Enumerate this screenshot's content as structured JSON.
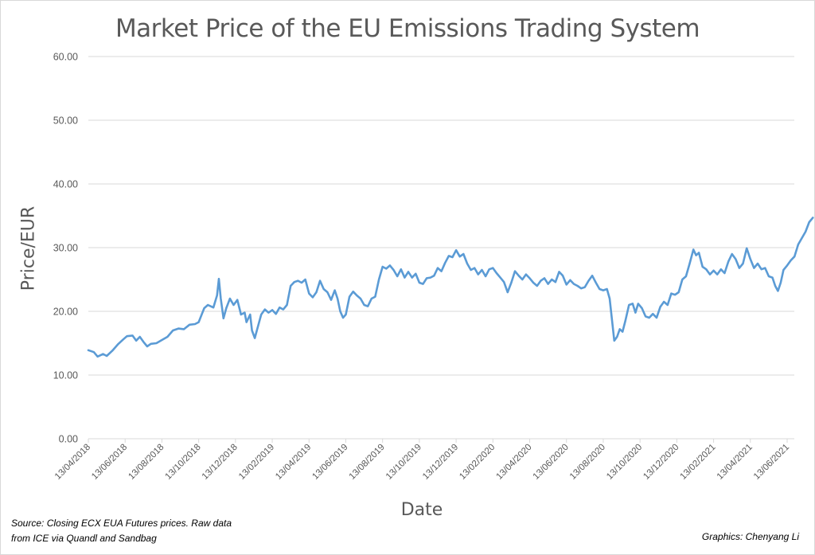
{
  "chart_data": {
    "type": "line",
    "title": "Market Price of the EU Emissions Trading System",
    "xlabel": "Date",
    "ylabel": "Price/EUR",
    "ylim": [
      0,
      60
    ],
    "y_ticks": [
      "0.00",
      "10.00",
      "20.00",
      "30.00",
      "40.00",
      "50.00",
      "60.00"
    ],
    "x_ticks": [
      "13/04/2018",
      "13/06/2018",
      "13/08/2018",
      "13/10/2018",
      "13/12/2018",
      "13/02/2019",
      "13/04/2019",
      "13/06/2019",
      "13/08/2019",
      "13/10/2019",
      "13/12/2019",
      "13/02/2020",
      "13/04/2020",
      "13/06/2020",
      "13/08/2020",
      "13/10/2020",
      "13/12/2020",
      "13/02/2021",
      "13/04/2021",
      "13/06/2021"
    ],
    "x_unit": "months since 13/04/2018",
    "x_range_months": [
      0,
      39.4
    ],
    "grid": true,
    "legend": "none",
    "series": [
      {
        "name": "ECX EUA Futures closing price",
        "color": "#5B9BD5",
        "points": [
          [
            0.0,
            13.9
          ],
          [
            0.3,
            13.6
          ],
          [
            0.5,
            12.9
          ],
          [
            0.8,
            13.3
          ],
          [
            1.0,
            13.0
          ],
          [
            1.3,
            13.8
          ],
          [
            1.6,
            14.8
          ],
          [
            1.9,
            15.6
          ],
          [
            2.1,
            16.1
          ],
          [
            2.4,
            16.2
          ],
          [
            2.6,
            15.4
          ],
          [
            2.8,
            16.0
          ],
          [
            3.0,
            15.2
          ],
          [
            3.2,
            14.5
          ],
          [
            3.4,
            14.9
          ],
          [
            3.7,
            15.0
          ],
          [
            4.0,
            15.5
          ],
          [
            4.3,
            16.0
          ],
          [
            4.6,
            17.0
          ],
          [
            4.9,
            17.3
          ],
          [
            5.2,
            17.2
          ],
          [
            5.5,
            17.9
          ],
          [
            5.8,
            18.0
          ],
          [
            6.0,
            18.3
          ],
          [
            6.3,
            20.5
          ],
          [
            6.5,
            21.0
          ],
          [
            6.8,
            20.6
          ],
          [
            7.0,
            22.5
          ],
          [
            7.1,
            25.1
          ],
          [
            7.2,
            22.0
          ],
          [
            7.35,
            18.9
          ],
          [
            7.5,
            20.5
          ],
          [
            7.7,
            22.0
          ],
          [
            7.9,
            21.0
          ],
          [
            8.1,
            21.8
          ],
          [
            8.3,
            19.5
          ],
          [
            8.5,
            19.8
          ],
          [
            8.6,
            18.3
          ],
          [
            8.8,
            19.5
          ],
          [
            8.9,
            17.0
          ],
          [
            9.05,
            15.8
          ],
          [
            9.2,
            17.4
          ],
          [
            9.4,
            19.5
          ],
          [
            9.6,
            20.3
          ],
          [
            9.8,
            19.8
          ],
          [
            10.0,
            20.2
          ],
          [
            10.2,
            19.6
          ],
          [
            10.4,
            20.6
          ],
          [
            10.6,
            20.3
          ],
          [
            10.8,
            21.0
          ],
          [
            11.0,
            24.0
          ],
          [
            11.2,
            24.6
          ],
          [
            11.4,
            24.8
          ],
          [
            11.6,
            24.5
          ],
          [
            11.8,
            25.0
          ],
          [
            12.0,
            22.8
          ],
          [
            12.2,
            22.2
          ],
          [
            12.4,
            23.0
          ],
          [
            12.6,
            24.8
          ],
          [
            12.8,
            23.5
          ],
          [
            13.0,
            23.0
          ],
          [
            13.2,
            21.8
          ],
          [
            13.4,
            23.3
          ],
          [
            13.55,
            22.0
          ],
          [
            13.7,
            20.0
          ],
          [
            13.85,
            19.0
          ],
          [
            14.0,
            19.5
          ],
          [
            14.2,
            22.3
          ],
          [
            14.4,
            23.1
          ],
          [
            14.6,
            22.5
          ],
          [
            14.8,
            22.0
          ],
          [
            15.0,
            21.0
          ],
          [
            15.2,
            20.8
          ],
          [
            15.4,
            22.0
          ],
          [
            15.6,
            22.3
          ],
          [
            15.8,
            25.0
          ],
          [
            16.0,
            27.0
          ],
          [
            16.2,
            26.7
          ],
          [
            16.4,
            27.2
          ],
          [
            16.6,
            26.5
          ],
          [
            16.8,
            25.5
          ],
          [
            17.0,
            26.6
          ],
          [
            17.2,
            25.3
          ],
          [
            17.4,
            26.2
          ],
          [
            17.6,
            25.3
          ],
          [
            17.8,
            25.9
          ],
          [
            18.0,
            24.5
          ],
          [
            18.2,
            24.3
          ],
          [
            18.4,
            25.2
          ],
          [
            18.6,
            25.3
          ],
          [
            18.8,
            25.6
          ],
          [
            19.0,
            26.8
          ],
          [
            19.2,
            26.3
          ],
          [
            19.4,
            27.6
          ],
          [
            19.6,
            28.7
          ],
          [
            19.8,
            28.5
          ],
          [
            20.0,
            29.6
          ],
          [
            20.2,
            28.6
          ],
          [
            20.4,
            29.0
          ],
          [
            20.6,
            27.5
          ],
          [
            20.8,
            26.5
          ],
          [
            21.0,
            26.8
          ],
          [
            21.2,
            25.8
          ],
          [
            21.4,
            26.5
          ],
          [
            21.6,
            25.5
          ],
          [
            21.8,
            26.6
          ],
          [
            22.0,
            26.8
          ],
          [
            22.2,
            26.0
          ],
          [
            22.4,
            25.3
          ],
          [
            22.6,
            24.6
          ],
          [
            22.8,
            23.0
          ],
          [
            23.0,
            24.5
          ],
          [
            23.2,
            26.3
          ],
          [
            23.4,
            25.6
          ],
          [
            23.6,
            25.0
          ],
          [
            23.8,
            25.8
          ],
          [
            24.0,
            25.2
          ],
          [
            24.2,
            24.5
          ],
          [
            24.4,
            24.0
          ],
          [
            24.6,
            24.8
          ],
          [
            24.8,
            25.2
          ],
          [
            25.0,
            24.3
          ],
          [
            25.2,
            25.0
          ],
          [
            25.4,
            24.6
          ],
          [
            25.6,
            26.2
          ],
          [
            25.8,
            25.6
          ],
          [
            26.0,
            24.2
          ],
          [
            26.2,
            24.9
          ],
          [
            26.4,
            24.3
          ],
          [
            26.6,
            24.0
          ],
          [
            26.8,
            23.6
          ],
          [
            27.0,
            23.8
          ],
          [
            27.2,
            24.8
          ],
          [
            27.4,
            25.6
          ],
          [
            27.6,
            24.5
          ],
          [
            27.8,
            23.5
          ],
          [
            28.0,
            23.3
          ],
          [
            28.2,
            23.5
          ],
          [
            28.35,
            22.0
          ],
          [
            28.5,
            18.0
          ],
          [
            28.6,
            15.4
          ],
          [
            28.75,
            16.0
          ],
          [
            28.9,
            17.2
          ],
          [
            29.05,
            16.8
          ],
          [
            29.2,
            18.5
          ],
          [
            29.4,
            21.0
          ],
          [
            29.6,
            21.2
          ],
          [
            29.75,
            19.8
          ],
          [
            29.9,
            21.2
          ],
          [
            30.1,
            20.5
          ],
          [
            30.3,
            19.2
          ],
          [
            30.5,
            19.0
          ],
          [
            30.7,
            19.6
          ],
          [
            30.9,
            19.0
          ],
          [
            31.1,
            20.7
          ],
          [
            31.3,
            21.5
          ],
          [
            31.5,
            21.0
          ],
          [
            31.7,
            22.8
          ],
          [
            31.9,
            22.6
          ],
          [
            32.1,
            23.0
          ],
          [
            32.3,
            25.0
          ],
          [
            32.5,
            25.5
          ],
          [
            32.7,
            27.5
          ],
          [
            32.9,
            29.7
          ],
          [
            33.05,
            28.8
          ],
          [
            33.2,
            29.2
          ],
          [
            33.4,
            27.0
          ],
          [
            33.6,
            26.6
          ],
          [
            33.8,
            25.8
          ],
          [
            34.0,
            26.4
          ],
          [
            34.2,
            25.8
          ],
          [
            34.4,
            26.6
          ],
          [
            34.6,
            26.0
          ],
          [
            34.8,
            27.8
          ],
          [
            35.0,
            29.0
          ],
          [
            35.2,
            28.2
          ],
          [
            35.4,
            26.8
          ],
          [
            35.6,
            27.5
          ],
          [
            35.8,
            29.9
          ],
          [
            36.0,
            28.2
          ],
          [
            36.2,
            26.8
          ],
          [
            36.4,
            27.5
          ],
          [
            36.6,
            26.6
          ],
          [
            36.8,
            26.8
          ],
          [
            37.0,
            25.5
          ],
          [
            37.2,
            25.3
          ],
          [
            37.35,
            24.0
          ],
          [
            37.5,
            23.2
          ],
          [
            37.65,
            24.5
          ],
          [
            37.8,
            26.5
          ],
          [
            38.0,
            27.2
          ],
          [
            38.2,
            28.0
          ],
          [
            38.4,
            28.6
          ],
          [
            38.6,
            30.5
          ],
          [
            38.8,
            31.5
          ],
          [
            39.0,
            32.5
          ],
          [
            39.2,
            34.0
          ],
          [
            39.4,
            34.7
          ]
        ]
      }
    ]
  },
  "footer": {
    "source_line1": "Source: Closing ECX EUA Futures prices. Raw data",
    "source_line2": "from ICE via Quandl and Sandbag",
    "credit": "Graphics: Chenyang Li"
  }
}
